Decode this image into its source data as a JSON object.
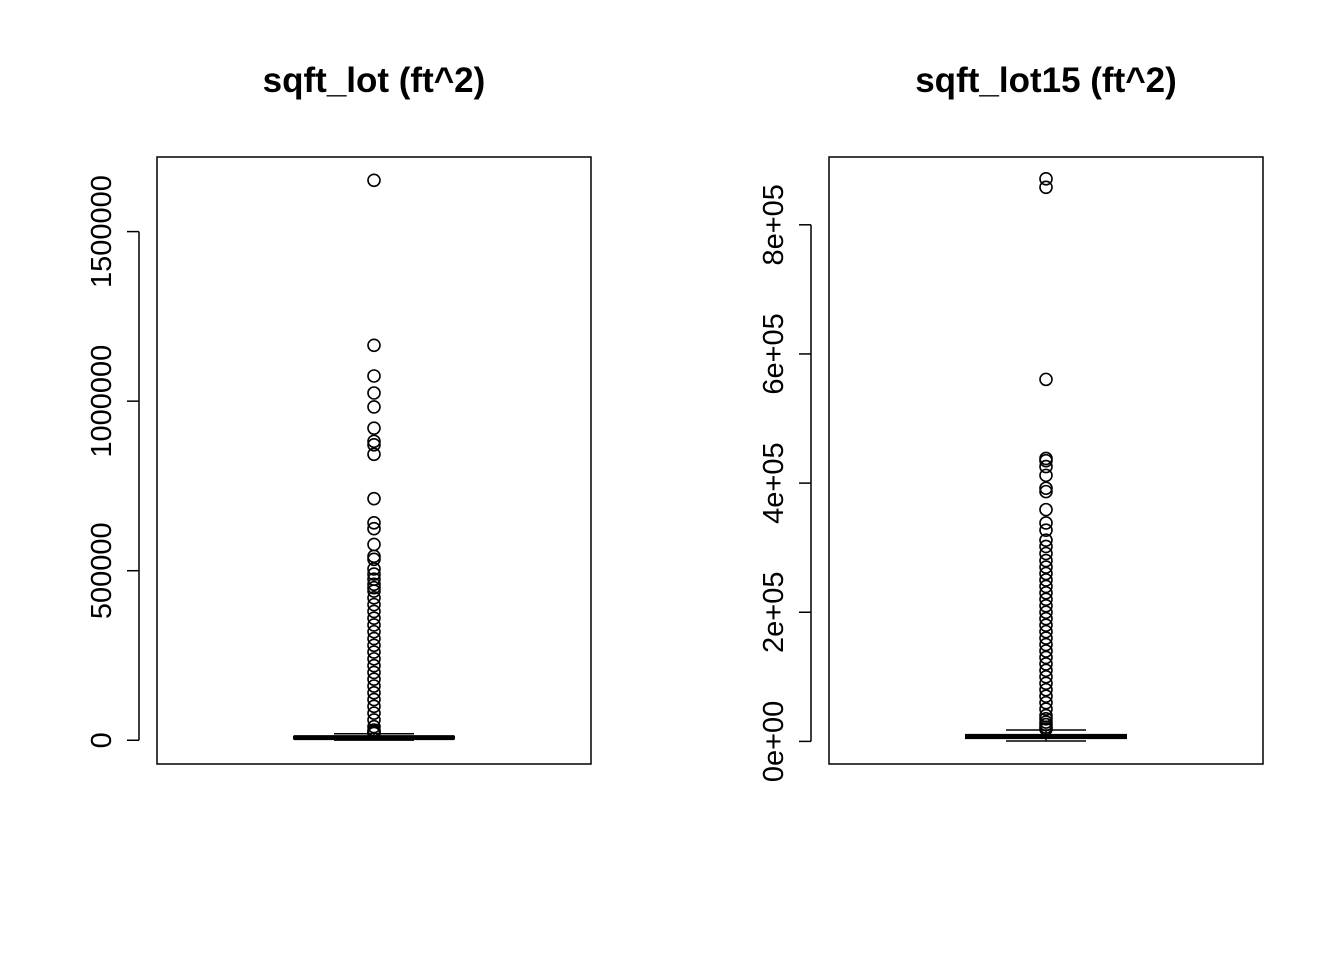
{
  "chart_data": [
    {
      "type": "boxplot",
      "title": "sqft_lot (ft^2)",
      "xlabel": "",
      "ylabel": "",
      "ylim": [
        -70000,
        1720000
      ],
      "yticks": [
        0,
        500000,
        1000000,
        1500000
      ],
      "ytick_labels": [
        "0",
        "500000",
        "1000000",
        "1500000"
      ],
      "box": {
        "q1": 5040,
        "median": 7618,
        "q3": 10688,
        "whisker_low": 520,
        "whisker_high": 19150
      },
      "outliers": [
        1651359,
        1164794,
        1074218,
        1024068,
        982998,
        920423,
        881654,
        871200,
        843309,
        712483,
        641203,
        623779,
        577605,
        542322,
        533610,
        505166,
        490000,
        475000,
        460000,
        450000,
        440000,
        420000,
        400000,
        380000,
        360000,
        340000,
        320000,
        300000,
        280000,
        260000,
        240000,
        220000,
        200000,
        180000,
        160000,
        140000,
        120000,
        100000,
        80000,
        60000,
        40000,
        30000,
        25000,
        22000,
        20000
      ],
      "grid": false
    },
    {
      "type": "boxplot",
      "title": "sqft_lot15 (ft^2)",
      "xlabel": "",
      "ylabel": "",
      "ylim": [
        -35000,
        905000
      ],
      "yticks": [
        0,
        200000,
        400000,
        600000,
        800000
      ],
      "ytick_labels": [
        "0e+00",
        "2e+05",
        "4e+05",
        "6e+05",
        "8e+05"
      ],
      "box": {
        "q1": 5100,
        "median": 7620,
        "q3": 10083,
        "whisker_low": 651,
        "whisker_high": 17560
      },
      "outliers": [
        871200,
        858132,
        560617,
        438213,
        434728,
        425581,
        411962,
        392040,
        386812,
        358934,
        338253,
        327135,
        311610,
        301870,
        290980,
        280000,
        270000,
        260000,
        250000,
        240000,
        230000,
        220000,
        210000,
        200000,
        190000,
        180000,
        170000,
        160000,
        150000,
        140000,
        130000,
        120000,
        110000,
        100000,
        90000,
        80000,
        70000,
        60000,
        50000,
        40000,
        35000,
        30000,
        26000,
        22000,
        19000
      ],
      "grid": false
    }
  ]
}
